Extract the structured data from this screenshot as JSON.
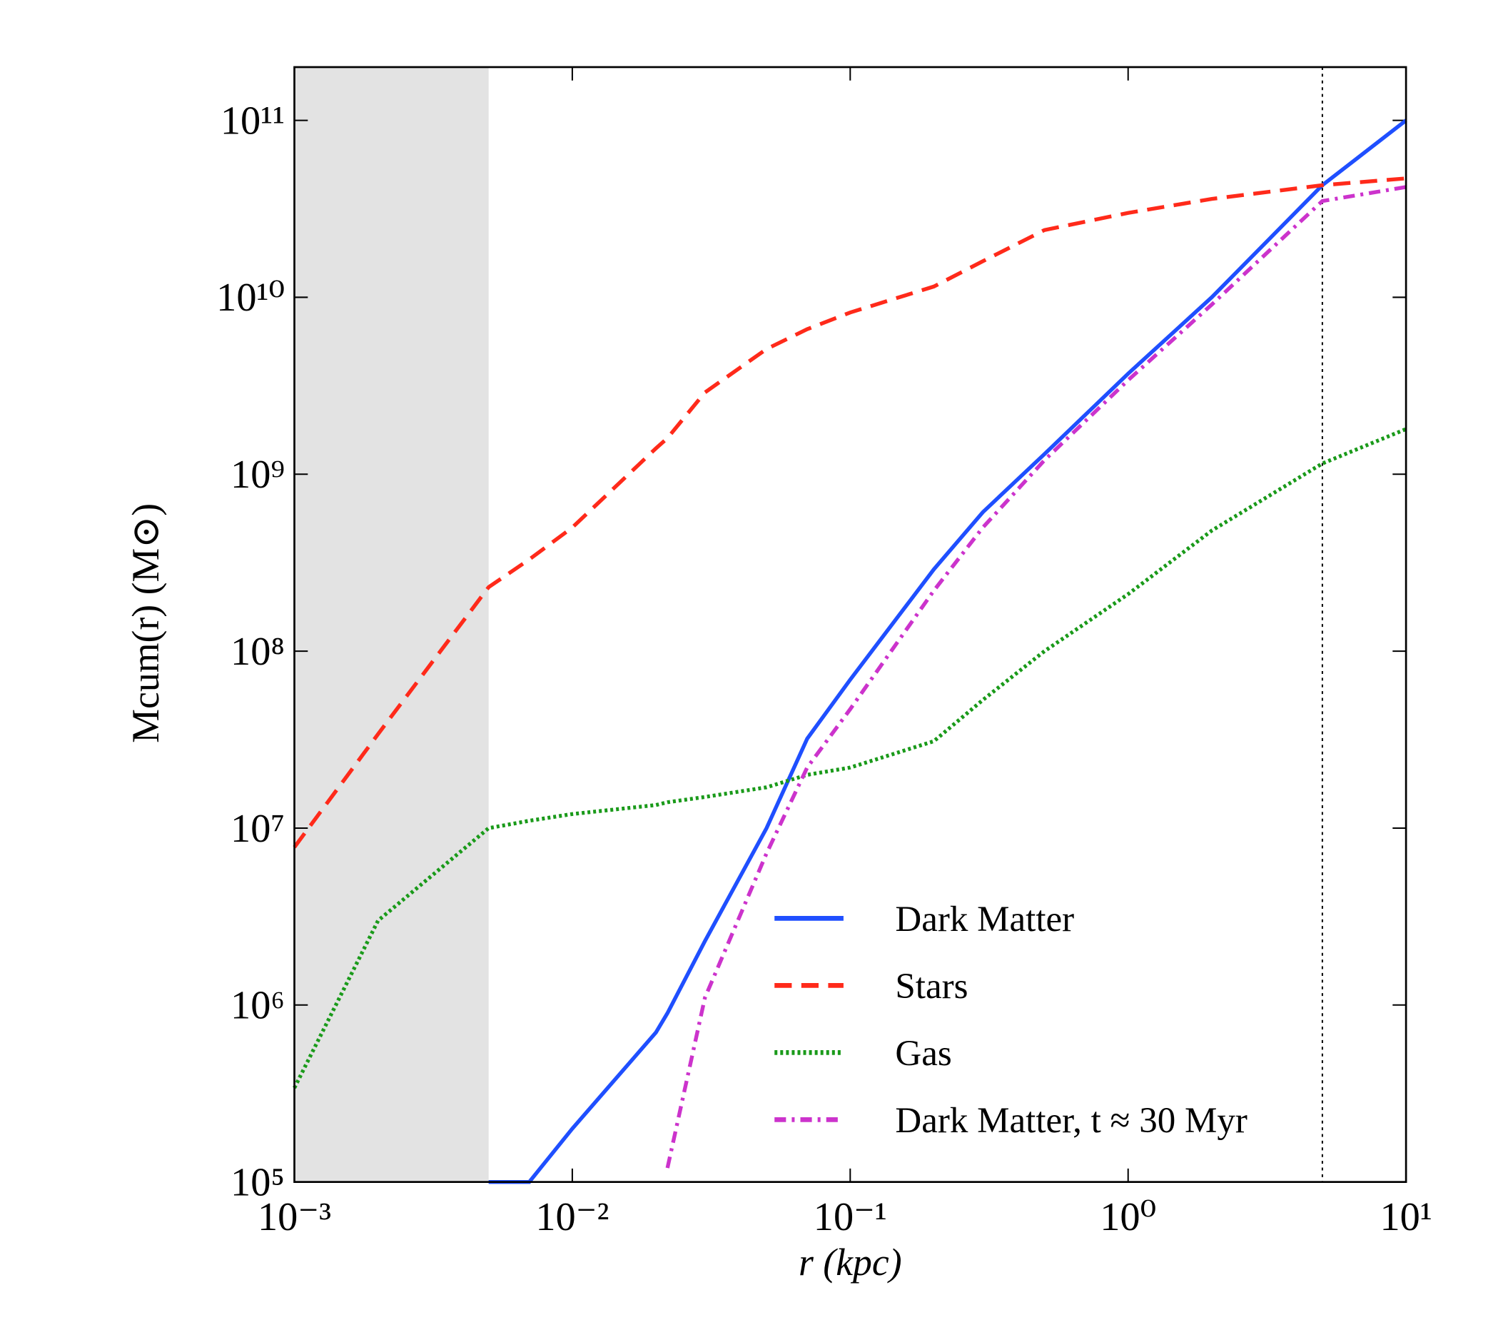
{
  "chart_data": {
    "type": "line",
    "xlabel": "r (kpc)",
    "ylabel": "Mcum(r) (M⊙)",
    "xscale": "log",
    "yscale": "log",
    "xlim": [
      0.001,
      10
    ],
    "ylim": [
      100000,
      200000000000
    ],
    "xticks": [
      {
        "value": 0.001,
        "label": "10⁻³"
      },
      {
        "value": 0.01,
        "label": "10⁻²"
      },
      {
        "value": 0.1,
        "label": "10⁻¹"
      },
      {
        "value": 1,
        "label": "10⁰"
      },
      {
        "value": 10,
        "label": "10¹"
      }
    ],
    "yticks": [
      {
        "value": 100000,
        "label": "10⁵"
      },
      {
        "value": 1000000,
        "label": "10⁶"
      },
      {
        "value": 10000000,
        "label": "10⁷"
      },
      {
        "value": 100000000,
        "label": "10⁸"
      },
      {
        "value": 1000000000,
        "label": "10⁹"
      },
      {
        "value": 10000000000,
        "label": "10¹⁰"
      },
      {
        "value": 100000000000,
        "label": "10¹¹"
      }
    ],
    "shaded_region": [
      0.001,
      0.005
    ],
    "vline": 5,
    "legend": "lower right",
    "x": [
      0.001,
      0.002,
      0.005,
      0.007,
      0.01,
      0.02,
      0.022,
      0.03,
      0.05,
      0.07,
      0.1,
      0.2,
      0.3,
      0.5,
      1,
      2,
      5,
      10
    ],
    "series": [
      {
        "name": "Dark Matter",
        "color": "#1f4fff",
        "dash": "solid",
        "values": [
          null,
          null,
          100000,
          100000,
          200000,
          700000,
          900000,
          2300000,
          10000000,
          32000000,
          69000000,
          290000000,
          610000000,
          1300000000,
          3700000000,
          10000000000,
          43000000000,
          100000000000
        ]
      },
      {
        "name": "Stars",
        "color": "#ff2a1a",
        "dash": "dashed",
        "values": [
          7800000,
          34000000,
          230000000,
          330000000,
          500000000,
          1400000000,
          1600000000,
          2900000000,
          5100000000,
          6600000000,
          8200000000,
          11500000000,
          16000000000,
          24000000000,
          30000000000,
          36000000000,
          43000000000,
          47000000000
        ]
      },
      {
        "name": "Gas",
        "color": "#1a9a1a",
        "dash": "dotted",
        "values": [
          340000,
          3000000,
          10000000,
          11000000,
          12000000,
          13500000,
          14000000,
          15000000,
          17000000,
          20000000,
          22000000,
          31000000,
          53000000,
          100000000,
          210000000,
          480000000,
          1150000000,
          1800000000
        ]
      },
      {
        "name": "Dark Matter, t ≈ 30 Myr",
        "color": "#cc33cc",
        "dash": "dashdot",
        "values": [
          null,
          null,
          null,
          null,
          null,
          null,
          120000,
          1100000,
          7200000,
          22000000,
          47000000,
          220000000,
          500000000,
          1200000000,
          3400000000,
          9100000000,
          35000000000,
          42000000000
        ]
      }
    ]
  }
}
